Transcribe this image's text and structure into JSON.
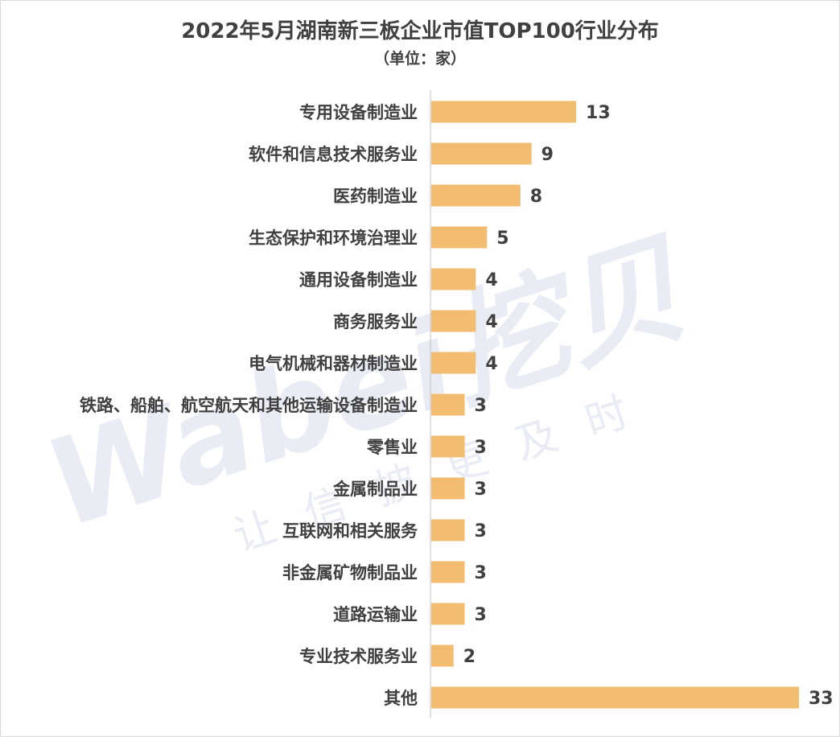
{
  "chart_data": {
    "type": "bar",
    "orientation": "horizontal",
    "title": "2022年5月湖南新三板企业市值TOP100行业分布",
    "subtitle": "（单位：家）",
    "categories": [
      "专用设备制造业",
      "软件和信息技术服务业",
      "医药制造业",
      "生态保护和环境治理业",
      "通用设备制造业",
      "商务服务业",
      "电气机械和器材制造业",
      "铁路、船舶、航空航天和其他运输设备制造业",
      "零售业",
      "金属制品业",
      "互联网和相关服务",
      "非金属矿物制品业",
      "道路运输业",
      "专业技术服务业",
      "其他"
    ],
    "values": [
      13,
      9,
      8,
      5,
      4,
      4,
      4,
      3,
      3,
      3,
      3,
      3,
      3,
      2,
      33
    ],
    "xlim": [
      0,
      33
    ],
    "bar_color": "#f2bd70",
    "grid": false,
    "legend": "none"
  },
  "watermark": {
    "logo_text": "Wabei挖贝",
    "slogan": "让信披更及时"
  }
}
